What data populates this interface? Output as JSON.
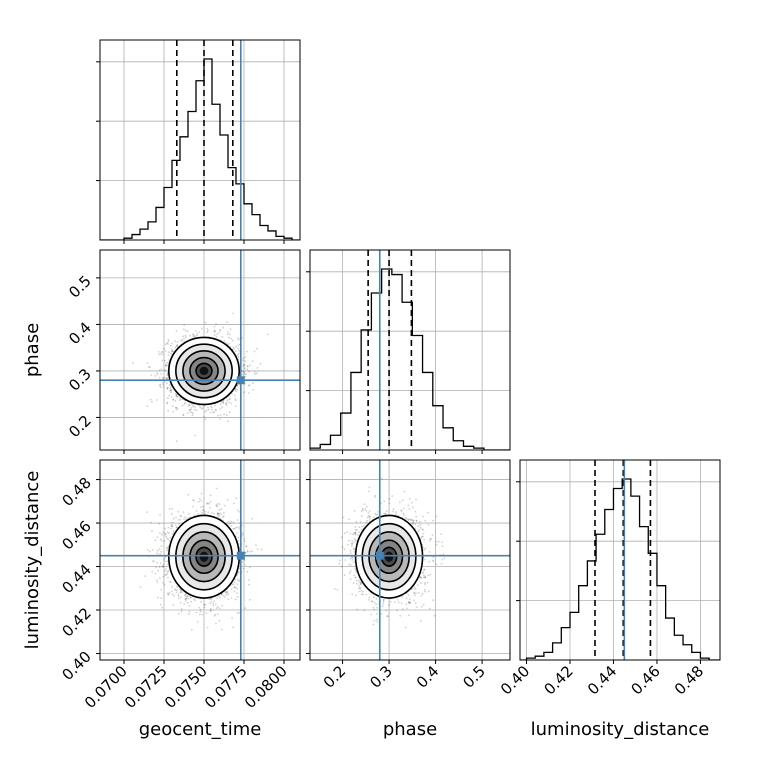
{
  "chart_data": {
    "type": "corner",
    "parameters": [
      "geocent_time",
      "phase",
      "luminosity_distance"
    ],
    "axis_labels": {
      "geocent_time": "geocent_time",
      "phase": "phase",
      "luminosity_distance": "luminosity_distance"
    },
    "ranges": {
      "geocent_time": [
        0.0685,
        0.081
      ],
      "phase": [
        0.13,
        0.56
      ],
      "luminosity_distance": [
        0.397,
        0.489
      ]
    },
    "ticks": {
      "geocent_time": [
        "0.0700",
        "0.0725",
        "0.0750",
        "0.0775",
        "0.0800"
      ],
      "phase": [
        "0.2",
        "0.3",
        "0.4",
        "0.5"
      ],
      "luminosity_distance": [
        "0.40",
        "0.42",
        "0.44",
        "0.46",
        "0.48"
      ]
    },
    "truths": {
      "geocent_time": 0.0773,
      "phase": 0.28,
      "luminosity_distance": 0.445
    },
    "quantiles": {
      "geocent_time": [
        0.0733,
        0.075,
        0.0768
      ],
      "phase": [
        0.255,
        0.3,
        0.348
      ],
      "luminosity_distance": [
        0.4315,
        0.4445,
        0.457
      ]
    },
    "means": {
      "geocent_time": 0.075,
      "phase": 0.3,
      "luminosity_distance": 0.4445
    },
    "stds": {
      "geocent_time": 0.0011,
      "phase": 0.036,
      "luminosity_distance": 0.0095
    },
    "histograms": {
      "geocent_time": {
        "edges": [
          0.0685,
          0.06875,
          0.069,
          0.06925,
          0.0695,
          0.06975,
          0.07,
          0.07025,
          0.0705,
          0.07075,
          0.071,
          0.07125,
          0.0715,
          0.07175,
          0.072,
          0.07225,
          0.0725,
          0.07275,
          0.073,
          0.07325,
          0.0735,
          0.07375,
          0.074,
          0.07425,
          0.0745,
          0.07475,
          0.075,
          0.07525,
          0.0755,
          0.07575,
          0.076,
          0.07625,
          0.0765,
          0.07675,
          0.077,
          0.07725,
          0.0775,
          0.07775,
          0.078,
          0.07825,
          0.0785,
          0.07875,
          0.079,
          0.07925,
          0.0795,
          0.07975,
          0.08,
          0.08025,
          0.0805,
          0.08075,
          0.081
        ],
        "counts": [
          0,
          0,
          0,
          0,
          0,
          0,
          1,
          1,
          3,
          3,
          6,
          6,
          10,
          10,
          18,
          18,
          29,
          29,
          44,
          44,
          57,
          57,
          71,
          71,
          88,
          88,
          100,
          100,
          75,
          75,
          58,
          58,
          40,
          40,
          31,
          31,
          20,
          20,
          14,
          14,
          8,
          8,
          5,
          5,
          2,
          2,
          1,
          1,
          0,
          0
        ]
      },
      "phase": {
        "edges": [
          0.13,
          0.152,
          0.174,
          0.196,
          0.218,
          0.24,
          0.262,
          0.284,
          0.306,
          0.328,
          0.35,
          0.372,
          0.394,
          0.416,
          0.438,
          0.46,
          0.482,
          0.504,
          0.526,
          0.548,
          0.56
        ],
        "counts": [
          1,
          3,
          8,
          20,
          42,
          65,
          85,
          98,
          95,
          80,
          62,
          42,
          24,
          12,
          5,
          2,
          1,
          0,
          0,
          0
        ]
      },
      "luminosity_distance": {
        "edges": [
          0.397,
          0.4,
          0.404,
          0.408,
          0.412,
          0.416,
          0.42,
          0.424,
          0.428,
          0.432,
          0.436,
          0.44,
          0.444,
          0.448,
          0.452,
          0.456,
          0.46,
          0.464,
          0.468,
          0.472,
          0.476,
          0.48,
          0.484,
          0.489
        ],
        "counts": [
          0,
          1,
          2,
          4,
          9,
          17,
          25,
          39,
          52,
          66,
          79,
          90,
          95,
          86,
          70,
          56,
          39,
          22,
          13,
          8,
          4,
          1,
          0
        ]
      }
    },
    "grid": true,
    "truth_color": "#4682b4",
    "quantile_style": "dashed black",
    "histogram_style": "step black"
  }
}
